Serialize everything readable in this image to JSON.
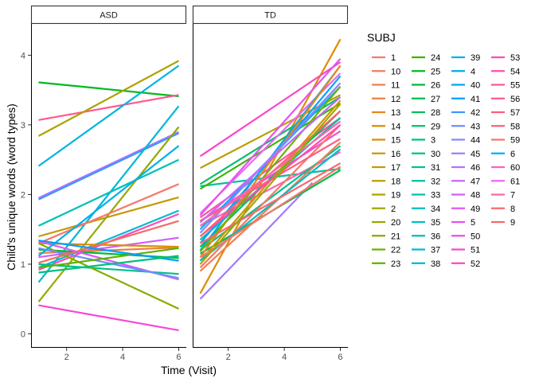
{
  "chart_data": {
    "type": "line",
    "xlabel": "Time (Visit)",
    "ylabel": "Child's unique words (word types)",
    "x_ticks": [
      2,
      4,
      6
    ],
    "y_ticks": [
      0,
      1,
      2,
      3,
      4
    ],
    "xlim": [
      0.73,
      6.27
    ],
    "ylim": [
      -0.2,
      4.45
    ],
    "legend": {
      "title": "SUBJ",
      "position": "right",
      "columns": [
        [
          "1",
          "10",
          "11",
          "12",
          "13",
          "14",
          "15",
          "16",
          "17",
          "18",
          "19",
          "2",
          "20",
          "21",
          "22",
          "23"
        ],
        [
          "24",
          "25",
          "26",
          "27",
          "28",
          "29",
          "3",
          "30",
          "31",
          "32",
          "33",
          "34",
          "35",
          "36",
          "37",
          "38"
        ],
        [
          "39",
          "4",
          "40",
          "41",
          "42",
          "43",
          "44",
          "45",
          "46",
          "47",
          "48",
          "49",
          "5",
          "50",
          "51",
          "52"
        ],
        [
          "53",
          "54",
          "55",
          "56",
          "57",
          "58",
          "59",
          "6",
          "60",
          "61",
          "7",
          "8",
          "9"
        ]
      ],
      "colors": {
        "1": "#F8766D",
        "10": "#F57963",
        "11": "#F27D53",
        "12": "#EE8044",
        "13": "#E7861B",
        "14": "#E08B00",
        "15": "#D89000",
        "16": "#CF9400",
        "17": "#C59900",
        "18": "#BB9D00",
        "19": "#B0A100",
        "2": "#A3A500",
        "20": "#95A900",
        "21": "#85AD00",
        "22": "#72B000",
        "23": "#5BB300",
        "24": "#39B600",
        "25": "#00B81F",
        "26": "#00BA38",
        "27": "#00BC4C",
        "28": "#00BE5D",
        "29": "#00BF6C",
        "3": "#00C07B",
        "30": "#00C089",
        "31": "#00C096",
        "32": "#00C1A2",
        "33": "#00C0AE",
        "34": "#00BFB9",
        "35": "#00BDC4",
        "36": "#00BBCE",
        "37": "#00B8D7",
        "38": "#00B4E0",
        "39": "#00B0E8",
        "4": "#00ABF0",
        "40": "#00A5F6",
        "41": "#009EFC",
        "42": "#3D97FF",
        "43": "#6D8EFF",
        "44": "#8B85FF",
        "45": "#A27BFF",
        "46": "#B571FF",
        "47": "#C667FF",
        "48": "#D35EFC",
        "49": "#E058F5",
        "5": "#E851EC",
        "50": "#F04CE2",
        "51": "#F748D6",
        "52": "#FB47C9",
        "53": "#FD4ABC",
        "54": "#FF4EAE",
        "55": "#FF53A0",
        "56": "#FF5991",
        "57": "#FE5E83",
        "58": "#FB6373",
        "59": "#F8766D",
        "6": "#00B0F6",
        "60": "#FF62BC",
        "61": "#E76BF3",
        "7": "#FF66A8",
        "8": "#F7696E",
        "9": "#F06C69"
      }
    },
    "panels": [
      {
        "name": "ASD",
        "series": [
          {
            "subj": "25",
            "x": [
              1,
              6
            ],
            "y": [
              3.61,
              3.41
            ]
          },
          {
            "subj": "56",
            "x": [
              1,
              6
            ],
            "y": [
              3.07,
              3.43
            ]
          },
          {
            "subj": "19",
            "x": [
              1,
              6
            ],
            "y": [
              2.84,
              3.92
            ]
          },
          {
            "subj": "38",
            "x": [
              1,
              6
            ],
            "y": [
              2.41,
              3.85
            ]
          },
          {
            "subj": "46",
            "x": [
              1,
              6
            ],
            "y": [
              1.95,
              2.9
            ]
          },
          {
            "subj": "42",
            "x": [
              1,
              6
            ],
            "y": [
              1.93,
              2.88
            ]
          },
          {
            "subj": "34",
            "x": [
              1,
              6
            ],
            "y": [
              1.55,
              2.5
            ]
          },
          {
            "subj": "17",
            "x": [
              1,
              6
            ],
            "y": [
              1.4,
              1.96
            ]
          },
          {
            "subj": "37",
            "x": [
              1,
              6
            ],
            "y": [
              0.74,
              3.27
            ]
          },
          {
            "subj": "20",
            "x": [
              1,
              6
            ],
            "y": [
              0.46,
              2.97
            ]
          },
          {
            "subj": "59",
            "x": [
              1,
              6
            ],
            "y": [
              1.3,
              2.15
            ]
          },
          {
            "subj": "36",
            "x": [
              1,
              6
            ],
            "y": [
              0.95,
              1.77
            ]
          },
          {
            "subj": "53",
            "x": [
              1,
              6
            ],
            "y": [
              0.92,
              1.72
            ]
          },
          {
            "subj": "48",
            "x": [
              1,
              6
            ],
            "y": [
              1.1,
              1.38
            ]
          },
          {
            "subj": "15",
            "x": [
              1,
              6
            ],
            "y": [
              1.3,
              1.25
            ]
          },
          {
            "subj": "12",
            "x": [
              1,
              6
            ],
            "y": [
              1.16,
              1.24
            ]
          },
          {
            "subj": "26",
            "x": [
              1,
              6
            ],
            "y": [
              1.21,
              1.09
            ]
          },
          {
            "subj": "30",
            "x": [
              1,
              6
            ],
            "y": [
              1.0,
              0.86
            ]
          },
          {
            "subj": "21",
            "x": [
              1,
              6
            ],
            "y": [
              1.3,
              0.36
            ]
          },
          {
            "subj": "49",
            "x": [
              1,
              6
            ],
            "y": [
              1.33,
              0.78
            ]
          },
          {
            "subj": "43",
            "x": [
              1,
              6
            ],
            "y": [
              1.23,
              0.8
            ]
          },
          {
            "subj": "51",
            "x": [
              1,
              6
            ],
            "y": [
              0.41,
              0.05
            ]
          },
          {
            "subj": "39",
            "x": [
              1,
              6
            ],
            "y": [
              1.12,
              2.7
            ]
          },
          {
            "subj": "9",
            "x": [
              1,
              6
            ],
            "y": [
              1.02,
              1.62
            ]
          },
          {
            "subj": "23",
            "x": [
              1,
              6
            ],
            "y": [
              0.95,
              1.23
            ]
          },
          {
            "subj": "41",
            "x": [
              1,
              6
            ],
            "y": [
              1.34,
              1.05
            ]
          },
          {
            "subj": "3",
            "x": [
              1,
              6
            ],
            "y": [
              0.88,
              1.12
            ]
          }
        ]
      },
      {
        "name": "TD",
        "series": [
          {
            "subj": "14",
            "x": [
              1,
              6
            ],
            "y": [
              0.58,
              4.23
            ]
          },
          {
            "subj": "45",
            "x": [
              1,
              5
            ],
            "y": [
              0.5,
              2.17
            ]
          },
          {
            "subj": "52",
            "x": [
              1,
              6
            ],
            "y": [
              2.55,
              3.9
            ]
          },
          {
            "subj": "18",
            "x": [
              1,
              6
            ],
            "y": [
              2.38,
              3.43
            ]
          },
          {
            "subj": "29",
            "x": [
              1,
              6
            ],
            "y": [
              2.15,
              3.4
            ]
          },
          {
            "subj": "32",
            "x": [
              1,
              6
            ],
            "y": [
              2.12,
              2.37
            ]
          },
          {
            "subj": "24",
            "x": [
              1,
              6
            ],
            "y": [
              2.08,
              3.31
            ]
          },
          {
            "subj": "55",
            "x": [
              1,
              6
            ],
            "y": [
              1.67,
              3.1
            ]
          },
          {
            "subj": "61",
            "x": [
              1,
              6
            ],
            "y": [
              1.73,
              3.74
            ]
          },
          {
            "subj": "50",
            "x": [
              1,
              6
            ],
            "y": [
              1.62,
              2.91
            ]
          },
          {
            "subj": "60",
            "x": [
              1,
              6
            ],
            "y": [
              1.55,
              2.61
            ]
          },
          {
            "subj": "6",
            "x": [
              1,
              6
            ],
            "y": [
              1.5,
              3.55
            ]
          },
          {
            "subj": "33",
            "x": [
              1,
              6
            ],
            "y": [
              1.35,
              3.1
            ]
          },
          {
            "subj": "40",
            "x": [
              1,
              6
            ],
            "y": [
              1.3,
              3.7
            ]
          },
          {
            "subj": "28",
            "x": [
              1,
              6
            ],
            "y": [
              1.25,
              3.2
            ]
          },
          {
            "subj": "4",
            "x": [
              1,
              6
            ],
            "y": [
              1.2,
              3.85
            ]
          },
          {
            "subj": "31",
            "x": [
              1,
              6
            ],
            "y": [
              1.2,
              2.7
            ]
          },
          {
            "subj": "27",
            "x": [
              1,
              6
            ],
            "y": [
              1.15,
              2.35
            ]
          },
          {
            "subj": "13",
            "x": [
              1,
              6
            ],
            "y": [
              1.1,
              3.85
            ]
          },
          {
            "subj": "16",
            "x": [
              1,
              6
            ],
            "y": [
              1.05,
              3.35
            ]
          },
          {
            "subj": "10",
            "x": [
              1,
              6
            ],
            "y": [
              0.95,
              3.0
            ]
          },
          {
            "subj": "11",
            "x": [
              1,
              6
            ],
            "y": [
              0.9,
              2.75
            ]
          },
          {
            "subj": "57",
            "x": [
              1,
              6
            ],
            "y": [
              1.62,
              2.8
            ]
          },
          {
            "subj": "54",
            "x": [
              1,
              6
            ],
            "y": [
              1.4,
              3.0
            ]
          },
          {
            "subj": "22",
            "x": [
              1,
              6
            ],
            "y": [
              1.18,
              3.55
            ]
          },
          {
            "subj": "35",
            "x": [
              1,
              6
            ],
            "y": [
              1.05,
              2.65
            ]
          },
          {
            "subj": "44",
            "x": [
              1,
              6
            ],
            "y": [
              1.45,
              3.6
            ]
          },
          {
            "subj": "47",
            "x": [
              1,
              6
            ],
            "y": [
              1.6,
              3.4
            ]
          },
          {
            "subj": "5",
            "x": [
              1,
              6
            ],
            "y": [
              1.7,
              3.95
            ]
          },
          {
            "subj": "58",
            "x": [
              1,
              6
            ],
            "y": [
              1.4,
              3.2
            ]
          },
          {
            "subj": "8",
            "x": [
              1,
              6
            ],
            "y": [
              1.3,
              2.45
            ]
          },
          {
            "subj": "7",
            "x": [
              1,
              6
            ],
            "y": [
              1.55,
              3.05
            ]
          },
          {
            "subj": "1",
            "x": [
              1,
              6
            ],
            "y": [
              1.1,
              2.4
            ]
          },
          {
            "subj": "2",
            "x": [
              1,
              6
            ],
            "y": [
              1.0,
              3.3
            ]
          }
        ]
      }
    ]
  }
}
